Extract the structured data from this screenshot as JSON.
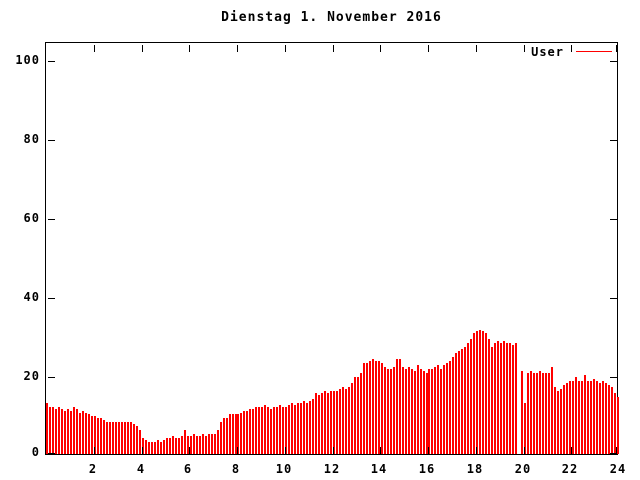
{
  "window": {
    "background": "#ffffff",
    "foreground": "#000000"
  },
  "chart_data": {
    "type": "bar",
    "title": "Dienstag 1. November 2016",
    "xlabel": "",
    "ylabel": "",
    "bar_color": "#ff0000",
    "grid": false,
    "legend_position": "top-right-inside",
    "legend": [
      {
        "label": "User",
        "color": "#ff0000"
      }
    ],
    "xlim": [
      0,
      24
    ],
    "ylim": [
      0,
      104.5
    ],
    "x_ticks": [
      2,
      4,
      6,
      8,
      10,
      12,
      14,
      16,
      18,
      20,
      22,
      24
    ],
    "y_ticks": [
      0,
      20,
      40,
      60,
      80,
      100
    ],
    "x_unit_hours": true,
    "x_start": 0.0625,
    "x_step": 0.125,
    "values": [
      13,
      12,
      12,
      11.5,
      12,
      11.5,
      11,
      11.5,
      11,
      12,
      11.5,
      10.5,
      11,
      10.5,
      10,
      9.5,
      9.5,
      9,
      9,
      8.5,
      8,
      8,
      8,
      8,
      8,
      8,
      8,
      8,
      8,
      7.5,
      7,
      6,
      4,
      3.5,
      3,
      3,
      3,
      3.5,
      3,
      3.5,
      4,
      4,
      4.5,
      4,
      4,
      4.5,
      6,
      4.5,
      4.5,
      5,
      4.5,
      4.5,
      5,
      4.5,
      5,
      5,
      5,
      6,
      8,
      9,
      9,
      10,
      10,
      10,
      10,
      10.5,
      11,
      11,
      11.5,
      11.5,
      12,
      12,
      12,
      12.5,
      12,
      11.5,
      12,
      12,
      12.5,
      12,
      12,
      12.5,
      13,
      12.5,
      13,
      13,
      13.5,
      13,
      13.5,
      14,
      15.5,
      15,
      15.5,
      16,
      15.5,
      16,
      16,
      16,
      16.5,
      17,
      16.5,
      17,
      18,
      19.5,
      19.5,
      20.5,
      23,
      23,
      23.5,
      24,
      23.5,
      23.5,
      23,
      22,
      21.5,
      21.5,
      22,
      24,
      24,
      22,
      21.5,
      22,
      21.5,
      21,
      22.5,
      21.5,
      21,
      20.5,
      21.5,
      21.5,
      22,
      22.5,
      21.5,
      22.5,
      23,
      23.5,
      24.5,
      25.5,
      26,
      26.5,
      27,
      28,
      29,
      30.5,
      31,
      31.5,
      31,
      30.5,
      29,
      27,
      28,
      28.5,
      28,
      28.5,
      28,
      28,
      27.5,
      28,
      0,
      21,
      13,
      20.5,
      21,
      20.5,
      20.5,
      21,
      20.5,
      20.5,
      20.5,
      22,
      17,
      16,
      16.5,
      17.5,
      18,
      18.5,
      18.5,
      19.5,
      18.5,
      18.5,
      20,
      18.5,
      18.5,
      19,
      18.5,
      18,
      18.5,
      18,
      17.5,
      17,
      15.5,
      14.5
    ]
  }
}
